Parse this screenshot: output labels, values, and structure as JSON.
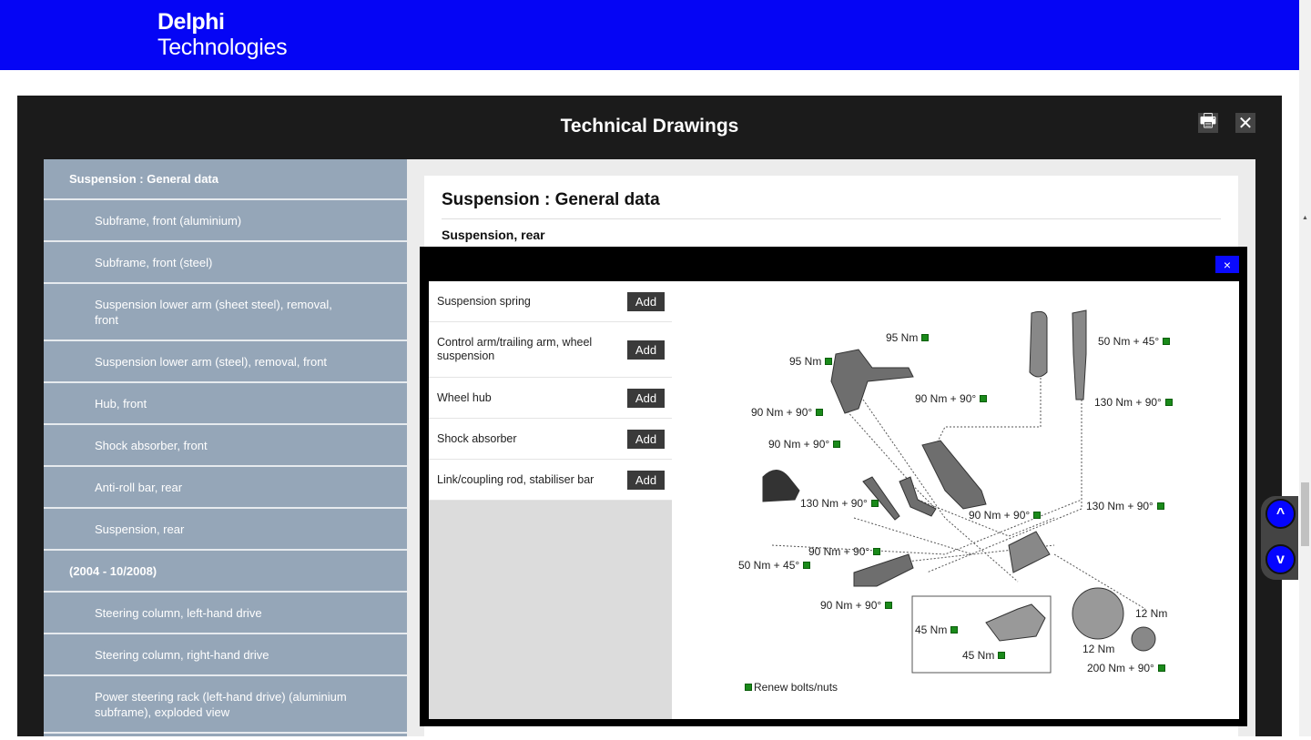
{
  "brand": {
    "line1": "Delphi",
    "line2": "Technologies",
    "color": "#0505f5"
  },
  "modal": {
    "title": "Technical Drawings",
    "print_icon": "print-icon",
    "close_icon": "close-icon"
  },
  "sidebar": {
    "items": [
      {
        "label": "Suspension : General data",
        "heading": true
      },
      {
        "label": "Subframe, front (aluminium)"
      },
      {
        "label": "Subframe, front (steel)"
      },
      {
        "label": "Suspension lower arm (sheet steel), removal, front"
      },
      {
        "label": "Suspension lower arm (steel), removal, front"
      },
      {
        "label": "Hub, front"
      },
      {
        "label": "Shock absorber, front"
      },
      {
        "label": "Anti-roll bar, rear"
      },
      {
        "label": "Suspension, rear"
      },
      {
        "label": "(2004 - 10/2008)",
        "heading": true
      },
      {
        "label": "Steering column, left-hand drive"
      },
      {
        "label": "Steering column, right-hand drive"
      },
      {
        "label": "Power steering rack (left-hand drive) (aluminium subframe), exploded view"
      }
    ]
  },
  "content": {
    "title": "Suspension : General data",
    "subtitle": "Suspension, rear"
  },
  "popup": {
    "close_label": "×",
    "parts": [
      {
        "name": "Suspension spring",
        "button": "Add"
      },
      {
        "name": "Control arm/trailing arm, wheel suspension",
        "button": "Add"
      },
      {
        "name": "Wheel hub",
        "button": "Add"
      },
      {
        "name": "Shock absorber",
        "button": "Add"
      },
      {
        "name": "Link/coupling rod, stabiliser bar",
        "button": "Add"
      }
    ],
    "diagram": {
      "labels": [
        "95 Nm",
        "95 Nm",
        "50 Nm + 45°",
        "90 Nm + 90°",
        "130 Nm + 90°",
        "90 Nm + 90°",
        "90 Nm + 90°",
        "130 Nm + 90°",
        "130 Nm + 90°",
        "90 Nm + 90°",
        "90 Nm + 90°",
        "50 Nm + 45°",
        "90 Nm + 90°",
        "45 Nm",
        "45 Nm",
        "12 Nm",
        "12 Nm",
        "200 Nm + 90°"
      ],
      "legend": "Renew bolts/nuts",
      "marker_color": "#1a8a1a"
    }
  },
  "nav": {
    "up": "^",
    "down": "v"
  }
}
